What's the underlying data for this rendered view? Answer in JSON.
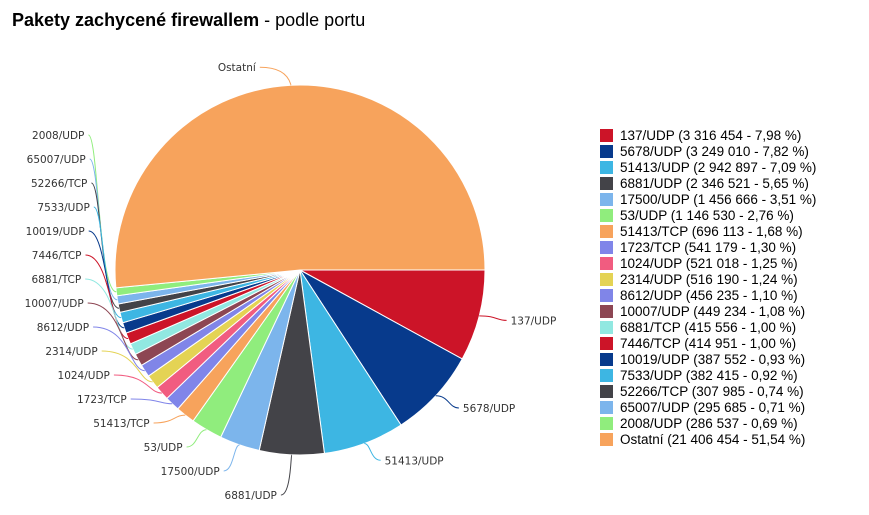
{
  "title": {
    "main": "Pakety zachycené firewallem",
    "sub": "podle portu"
  },
  "chart_data": {
    "type": "pie",
    "title": "Pakety zachycené firewallem - podle portu",
    "series": [
      {
        "label": "137/UDP",
        "legend": "137/UDP (3 316 454 - 7,98 %)",
        "value": 3316454,
        "percent": 7.98,
        "color": "#cc1428"
      },
      {
        "label": "5678/UDP",
        "legend": "5678/UDP (3 249 010 - 7,82 %)",
        "value": 3249010,
        "percent": 7.82,
        "color": "#073a8c"
      },
      {
        "label": "51413/UDP",
        "legend": "51413/UDP (2 942 897 - 7,09 %)",
        "value": 2942897,
        "percent": 7.09,
        "color": "#3db6e3"
      },
      {
        "label": "6881/UDP",
        "legend": "6881/UDP (2 346 521 - 5,65 %)",
        "value": 2346521,
        "percent": 5.65,
        "color": "#434348"
      },
      {
        "label": "17500/UDP",
        "legend": "17500/UDP (1 456 666 - 3,51 %)",
        "value": 1456666,
        "percent": 3.51,
        "color": "#7cb5ec"
      },
      {
        "label": "53/UDP",
        "legend": "53/UDP (1 146 530 - 2,76 %)",
        "value": 1146530,
        "percent": 2.76,
        "color": "#90ed7d"
      },
      {
        "label": "51413/TCP",
        "legend": "51413/TCP (696 113 - 1,68 %)",
        "value": 696113,
        "percent": 1.68,
        "color": "#f7a35c"
      },
      {
        "label": "1723/TCP",
        "legend": "1723/TCP (541 179 - 1,30 %)",
        "value": 541179,
        "percent": 1.3,
        "color": "#8085e9"
      },
      {
        "label": "1024/UDP",
        "legend": "1024/UDP (521 018 - 1,25 %)",
        "value": 521018,
        "percent": 1.25,
        "color": "#f15c80"
      },
      {
        "label": "2314/UDP",
        "legend": "2314/UDP (516 190 - 1,24 %)",
        "value": 516190,
        "percent": 1.24,
        "color": "#e4d354"
      },
      {
        "label": "8612/UDP",
        "legend": "8612/UDP (456 235 - 1,10 %)",
        "value": 456235,
        "percent": 1.1,
        "color": "#8085e8"
      },
      {
        "label": "10007/UDP",
        "legend": "10007/UDP (449 234 - 1,08 %)",
        "value": 449234,
        "percent": 1.08,
        "color": "#8d4653"
      },
      {
        "label": "6881/TCP",
        "legend": "6881/TCP (415 556 - 1,00 %)",
        "value": 415556,
        "percent": 1.0,
        "color": "#91e8e1"
      },
      {
        "label": "7446/TCP",
        "legend": "7446/TCP (414 951 - 1,00 %)",
        "value": 414951,
        "percent": 1.0,
        "color": "#cc1428"
      },
      {
        "label": "10019/UDP",
        "legend": "10019/UDP (387 552 - 0,93 %)",
        "value": 387552,
        "percent": 0.93,
        "color": "#073a8c"
      },
      {
        "label": "7533/UDP",
        "legend": "7533/UDP (382 415 - 0,92 %)",
        "value": 382415,
        "percent": 0.92,
        "color": "#3db6e3"
      },
      {
        "label": "52266/TCP",
        "legend": "52266/TCP (307 985 - 0,74 %)",
        "value": 307985,
        "percent": 0.74,
        "color": "#434348"
      },
      {
        "label": "65007/UDP",
        "legend": "65007/UDP (295 685 - 0,71 %)",
        "value": 295685,
        "percent": 0.71,
        "color": "#7cb5ec"
      },
      {
        "label": "2008/UDP",
        "legend": "2008/UDP (286 537 - 0,69 %)",
        "value": 286537,
        "percent": 0.69,
        "color": "#90ed7d"
      },
      {
        "label": "Ostatní",
        "legend": "Ostatní (21 406 454 - 51,54 %)",
        "value": 21406454,
        "percent": 51.54,
        "color": "#f7a35c"
      }
    ],
    "legend_position": "right"
  }
}
